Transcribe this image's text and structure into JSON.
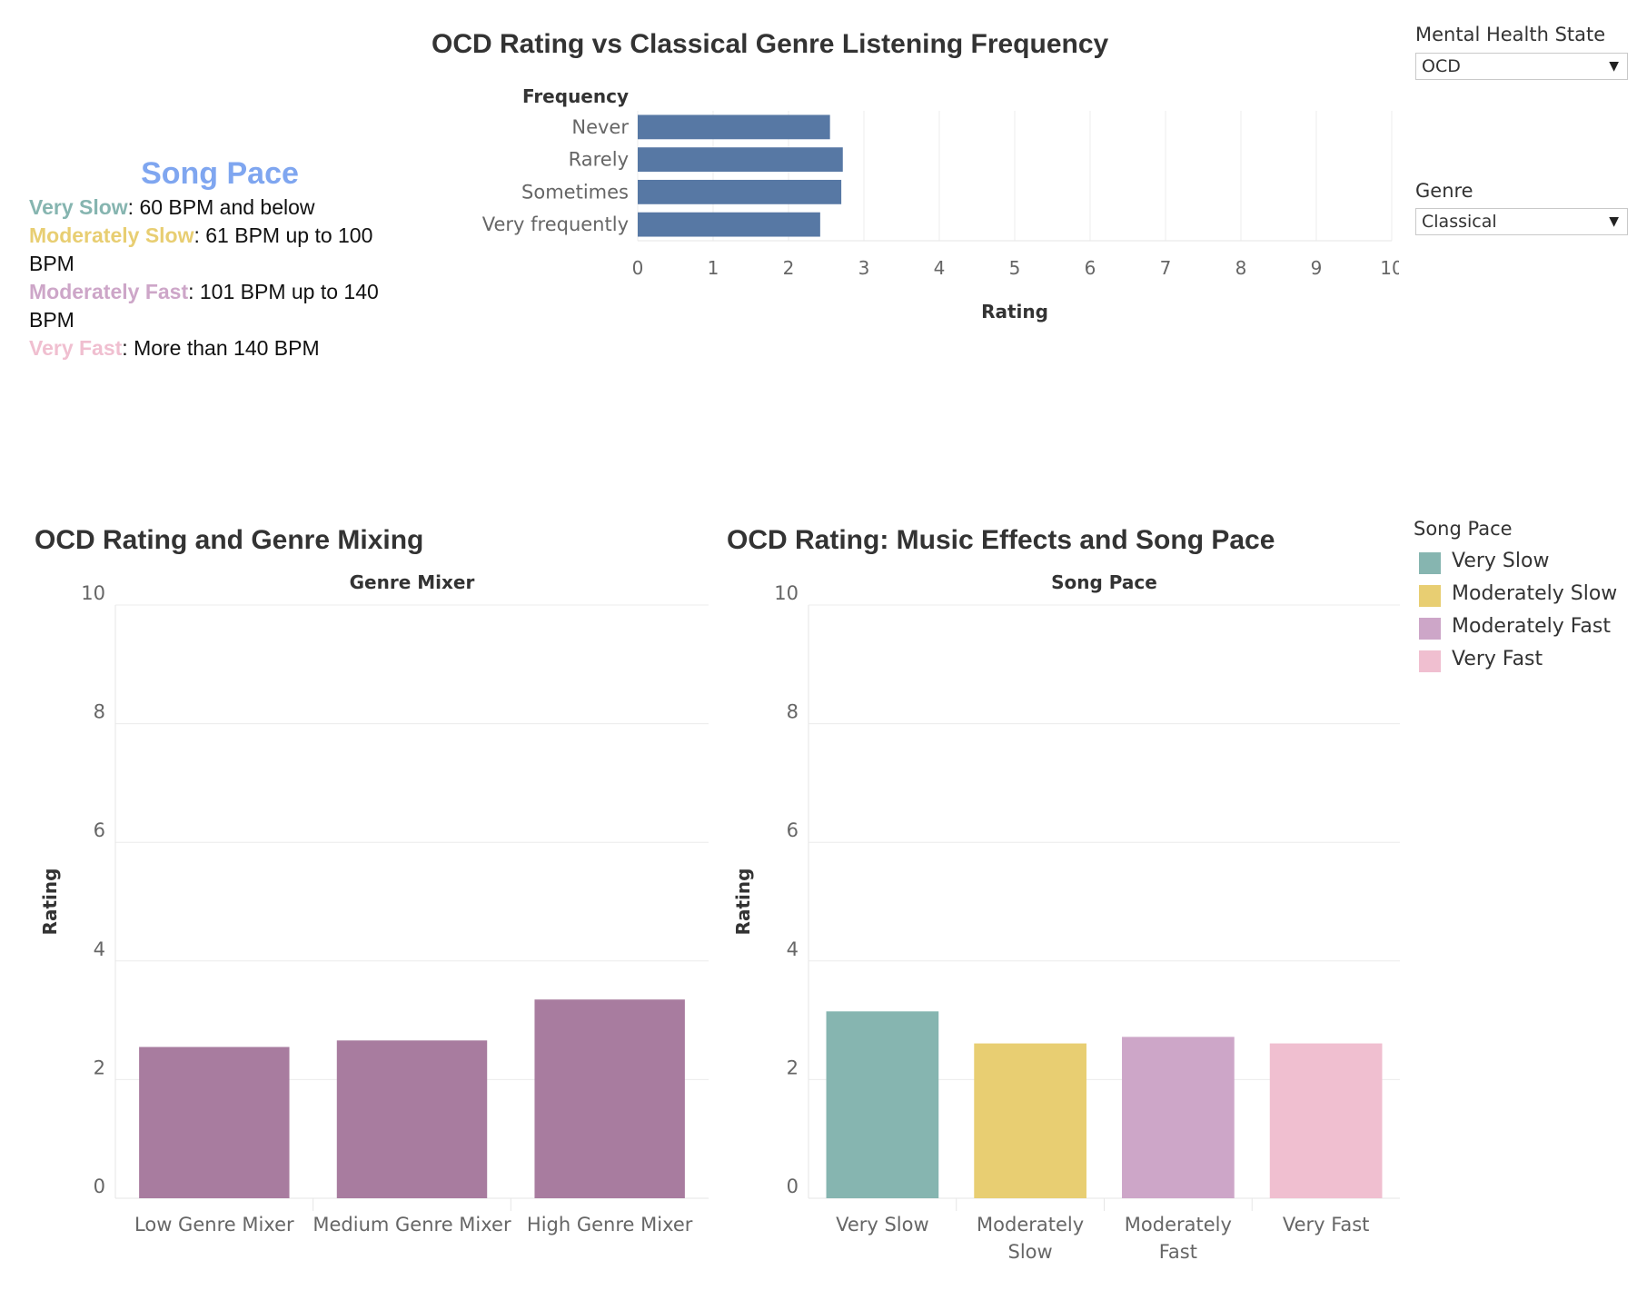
{
  "filters": {
    "mental_health": {
      "label": "Mental Health State",
      "value": "OCD"
    },
    "genre": {
      "label": "Genre",
      "value": "Classical"
    }
  },
  "song_pace_note": {
    "title": "Song Pace",
    "title_color": "#7FA6F0",
    "lines": [
      {
        "key": "Very Slow",
        "text": ": 60 BPM and below",
        "color": "#86B5B0"
      },
      {
        "key": "Moderately Slow",
        "text": ": 61 BPM up to 100 BPM",
        "color": "#E8CE72"
      },
      {
        "key": "Moderately Fast",
        "text": ": 101 BPM up to 140 BPM",
        "color": "#CDA6C8"
      },
      {
        "key": "Very Fast",
        "text": ": More than 140 BPM",
        "color": "#F0BFD0"
      }
    ]
  },
  "legend": {
    "title": "Song Pace",
    "items": [
      {
        "label": "Very Slow",
        "color": "#86B5B0"
      },
      {
        "label": "Moderately Slow",
        "color": "#E8CE72"
      },
      {
        "label": "Moderately Fast",
        "color": "#CDA6C8"
      },
      {
        "label": "Very Fast",
        "color": "#F0BFD0"
      }
    ]
  },
  "chart_data": [
    {
      "type": "bar",
      "orientation": "horizontal",
      "title": "OCD Rating vs Classical Genre Listening Frequency",
      "row_header": "Frequency",
      "categories": [
        "Never",
        "Rarely",
        "Sometimes",
        "Very frequently"
      ],
      "values": [
        2.55,
        2.72,
        2.7,
        2.42
      ],
      "xlabel": "Rating",
      "xlim": [
        0,
        10
      ],
      "ticks": [
        "0",
        "1",
        "2",
        "3",
        "4",
        "5",
        "6",
        "7",
        "8",
        "9",
        "10"
      ],
      "color": "#5778A4",
      "grid": true
    },
    {
      "type": "bar",
      "title": "OCD Rating and Genre Mixing",
      "header": "Genre Mixer",
      "categories": [
        "Low Genre Mixer",
        "Medium Genre Mixer",
        "High Genre Mixer"
      ],
      "values": [
        2.55,
        2.66,
        3.35
      ],
      "ylabel": "Rating",
      "ylim": [
        0,
        10
      ],
      "ticks": [
        "0",
        "2",
        "4",
        "6",
        "8",
        "10"
      ],
      "color": "#A87C9F",
      "grid": true
    },
    {
      "type": "bar",
      "title": "OCD Rating: Music Effects and Song Pace",
      "header": "Song Pace",
      "categories": [
        "Very Slow",
        "Moderately Slow",
        "Moderately Fast",
        "Very Fast"
      ],
      "values": [
        3.15,
        2.61,
        2.72,
        2.61
      ],
      "colors": [
        "#86B5B0",
        "#E8CE72",
        "#CDA6C8",
        "#F0BFD0"
      ],
      "ylabel": "Rating",
      "ylim": [
        0,
        10
      ],
      "ticks": [
        "0",
        "2",
        "4",
        "6",
        "8",
        "10"
      ],
      "grid": true
    }
  ]
}
